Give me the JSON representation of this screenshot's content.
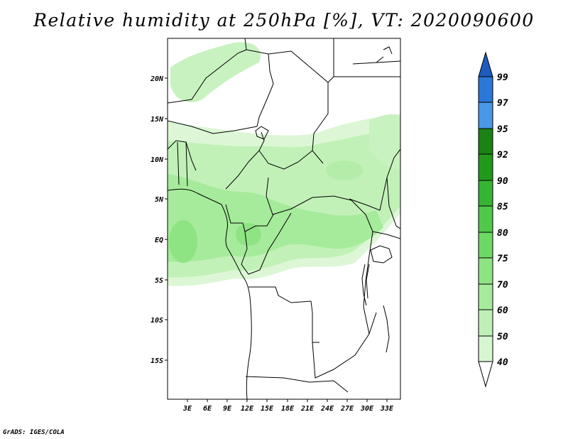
{
  "title": "Relative humidity at 250hPa [%], VT: 2020090600",
  "credit": "GrADS: IGES/COLA",
  "map": {
    "lat_labels": [
      "20N",
      "15N",
      "10N",
      "5N",
      "EQ",
      "5S",
      "10S",
      "15S"
    ],
    "lon_labels": [
      "3E",
      "6E",
      "9E",
      "12E",
      "15E",
      "18E",
      "21E",
      "24E",
      "27E",
      "30E",
      "33E"
    ]
  },
  "colorbar": {
    "levels": [
      "40",
      "50",
      "60",
      "70",
      "75",
      "80",
      "85",
      "90",
      "92",
      "95",
      "97",
      "99"
    ],
    "colors": [
      "#eafbe6",
      "#d6f6d0",
      "#bff0b6",
      "#a6eb9b",
      "#8ee383",
      "#6cd965",
      "#50c94b",
      "#36b532",
      "#219a1c",
      "#1a8314",
      "#4a98e8",
      "#2a78d8",
      "#1e5bc0"
    ]
  }
}
